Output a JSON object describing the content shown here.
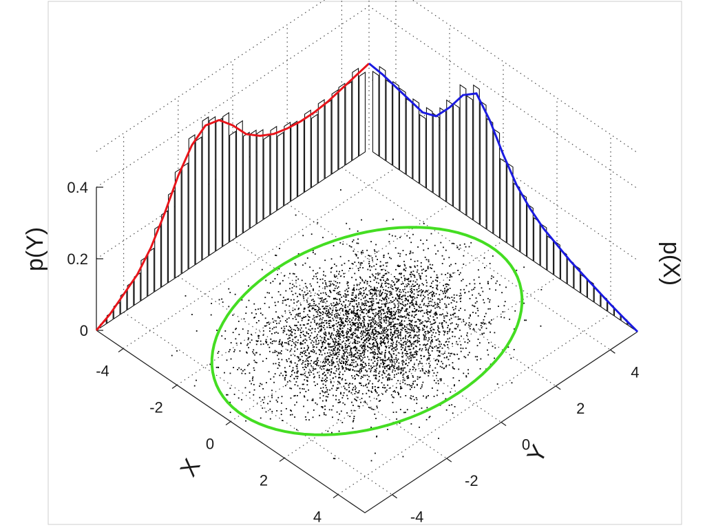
{
  "chart_data": {
    "type": "scatter",
    "title": "",
    "description_kind": "3d-joint-scatter-with-marginal-histograms",
    "axes": {
      "x": {
        "label": "X",
        "ticks": [
          -4,
          -2,
          0,
          2,
          4
        ],
        "range": [
          -5,
          5
        ]
      },
      "y": {
        "label": "Y",
        "ticks": [
          -4,
          -2,
          0,
          2,
          4
        ],
        "range": [
          -5,
          5
        ]
      },
      "z_left": {
        "label": "p(Y)",
        "ticks": [
          0,
          0.2,
          0.4
        ],
        "range": [
          0,
          0.4
        ]
      },
      "z_right": {
        "label": "p(X)",
        "ticks": [],
        "range": [
          0,
          0.4
        ]
      }
    },
    "grid": true,
    "marginals": [
      {
        "name": "p(Y)",
        "color": "#e8141a",
        "curve_y": [
          -5,
          -4.5,
          -4,
          -3.5,
          -3,
          -2.5,
          -2,
          -1.5,
          -1,
          -0.5,
          0,
          0.5,
          1,
          1.5,
          2,
          2.5,
          3,
          3.5,
          4,
          4.5,
          5
        ],
        "curve_p": [
          0.0,
          0.02,
          0.05,
          0.08,
          0.13,
          0.2,
          0.28,
          0.34,
          0.37,
          0.36,
          0.32,
          0.27,
          0.24,
          0.22,
          0.21,
          0.205,
          0.205,
          0.21,
          0.22,
          0.23,
          0.24
        ]
      },
      {
        "name": "p(X)",
        "color": "#1a1ae0",
        "curve_x": [
          -5,
          -4.5,
          -4,
          -3.5,
          -3,
          -2.5,
          -2,
          -1.5,
          -1,
          -0.5,
          0,
          0.5,
          1,
          1.5,
          2,
          2.5,
          3,
          3.5,
          4,
          4.5,
          5
        ],
        "curve_p": [
          0.24,
          0.235,
          0.225,
          0.215,
          0.205,
          0.22,
          0.27,
          0.33,
          0.36,
          0.31,
          0.24,
          0.18,
          0.14,
          0.11,
          0.09,
          0.07,
          0.055,
          0.04,
          0.025,
          0.012,
          0.0
        ]
      }
    ],
    "scatter": {
      "count": 4000,
      "color": "#000000",
      "mean": [
        0,
        0
      ],
      "sd": [
        1.3,
        1.6
      ]
    },
    "ellipse": {
      "color": "#44dd22",
      "center": [
        0,
        0
      ],
      "semi_x": 3.4,
      "semi_y": 4.6
    }
  },
  "labels": {
    "x_axis": "X",
    "y_axis": "Y",
    "z_left": "p(Y)",
    "z_right": "p(X)"
  }
}
